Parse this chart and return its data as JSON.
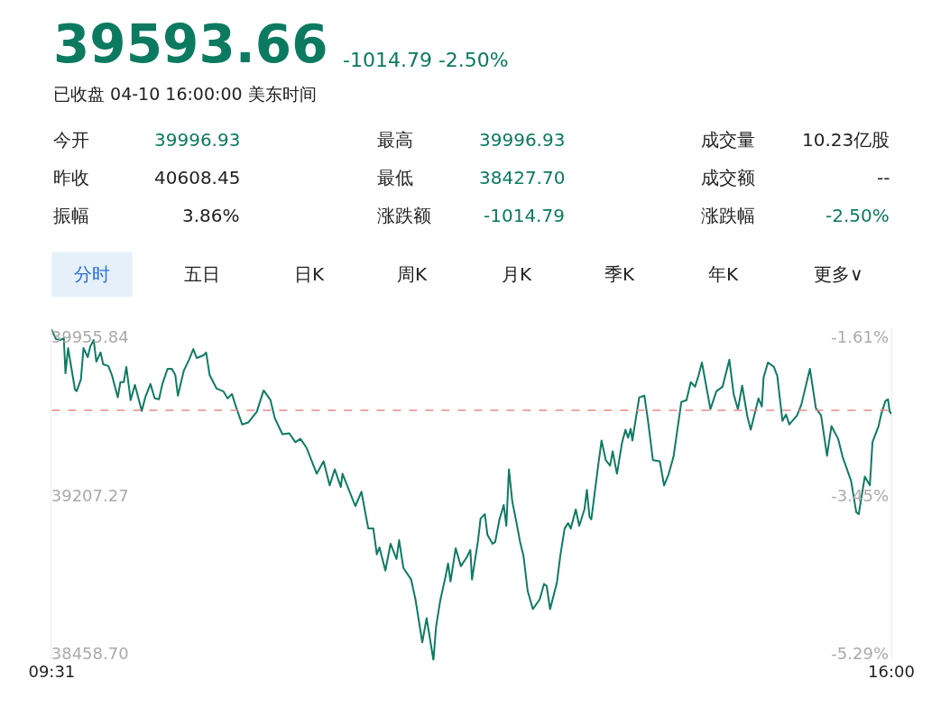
{
  "chart_data": {
    "type": "line",
    "title": "39593.66",
    "subtitle": "-1014.79 -2.50%",
    "annotations": [
      "已收盘 04-10 16:00:00 美东时间",
      "今开",
      "39996.93",
      "最高",
      "39996.93",
      "成交量",
      "10.23亿股",
      "昨收",
      "40608.45",
      "最低",
      "38427.70",
      "成交额",
      "--",
      "振幅",
      "3.86%",
      "涨跌额",
      "-1014.79",
      "涨跌幅",
      "-2.50%",
      "分时",
      "五日",
      "日K",
      "周K",
      "月K",
      "季K",
      "年K",
      "更多∨"
    ],
    "color": "#0f7a64",
    "line_style": "solid",
    "marker": "none",
    "x": [
      9.517,
      9.55,
      9.583,
      9.61,
      9.623,
      9.643,
      9.696,
      9.709,
      9.742,
      9.762,
      9.795,
      9.815,
      9.841,
      9.861,
      9.894,
      9.914,
      9.954,
      9.981,
      10.027,
      10.047,
      10.073,
      10.093,
      10.126,
      10.159,
      10.212,
      10.239,
      10.279,
      10.312,
      10.345,
      10.371,
      10.411,
      10.444,
      10.471,
      10.491,
      10.537,
      10.577,
      10.61,
      10.636,
      10.689,
      10.709,
      10.736,
      10.789,
      10.841,
      10.875,
      10.908,
      10.941,
      10.987,
      11.034,
      11.1,
      11.153,
      11.206,
      11.239,
      11.298,
      11.351,
      11.398,
      11.437,
      11.484,
      11.563,
      11.616,
      11.663,
      11.702,
      11.749,
      11.762,
      11.861,
      11.908,
      11.961,
      12.0,
      12.027,
      12.047,
      12.093,
      12.133,
      12.179,
      12.199,
      12.232,
      12.292,
      12.325,
      12.378,
      12.411,
      12.431,
      12.464,
      12.484,
      12.517,
      12.557,
      12.577,
      12.596,
      12.636,
      12.676,
      12.722,
      12.749,
      12.762,
      12.808,
      12.828,
      12.861,
      12.881,
      12.921,
      12.941,
      12.974,
      13.007,
      13.027,
      13.047,
      13.073,
      13.106,
      13.133,
      13.159,
      13.192,
      13.232,
      13.285,
      13.318,
      13.338,
      13.365,
      13.418,
      13.444,
      13.477,
      13.504,
      13.524,
      13.563,
      13.59,
      13.63,
      13.649,
      13.669,
      13.683,
      13.736,
      13.762,
      13.795,
      13.828,
      13.848,
      13.881,
      13.921,
      13.947,
      13.967,
      13.987,
      14.0,
      14.053,
      14.093,
      14.12,
      14.159,
      14.212,
      14.245,
      14.279,
      14.318,
      14.378,
      14.418,
      14.451,
      14.484,
      14.51,
      14.537,
      14.603,
      14.649,
      14.696,
      14.749,
      14.782,
      14.815,
      14.848,
      14.888,
      14.914,
      14.974,
      15.0,
      15.013,
      15.047,
      15.093,
      15.119,
      15.159,
      15.186,
      15.212,
      15.272,
      15.305,
      15.371,
      15.417,
      15.457,
      15.503,
      15.537,
      15.589,
      15.623,
      15.689,
      15.729,
      15.748,
      15.795,
      15.834,
      15.854,
      15.901,
      15.921,
      15.954,
      15.974,
      15.987,
      16.0
    ],
    "values": [
      39990,
      39946,
      39942,
      39950,
      39785,
      39904,
      39709,
      39700,
      39755,
      39904,
      39861,
      39912,
      39942,
      39840,
      39883,
      39827,
      39819,
      39777,
      39671,
      39743,
      39743,
      39815,
      39658,
      39730,
      39607,
      39671,
      39734,
      39666,
      39662,
      39734,
      39806,
      39806,
      39777,
      39679,
      39798,
      39849,
      39899,
      39857,
      39870,
      39883,
      39777,
      39713,
      39700,
      39666,
      39687,
      39624,
      39543,
      39552,
      39603,
      39704,
      39658,
      39573,
      39497,
      39501,
      39459,
      39475,
      39433,
      39310,
      39369,
      39255,
      39331,
      39247,
      39310,
      39157,
      39225,
      39051,
      39051,
      38929,
      38962,
      38852,
      38979,
      38907,
      38996,
      38865,
      38810,
      38717,
      38513,
      38627,
      38555,
      38428,
      38585,
      38712,
      38823,
      38886,
      38801,
      38958,
      38873,
      38916,
      38950,
      38810,
      38992,
      39098,
      39119,
      39022,
      38979,
      38988,
      39094,
      39162,
      39064,
      39331,
      39179,
      39077,
      38988,
      38924,
      38755,
      38670,
      38717,
      38789,
      38780,
      38670,
      38797,
      38924,
      39051,
      39077,
      39051,
      39141,
      39064,
      39141,
      39234,
      39107,
      39094,
      39348,
      39467,
      39374,
      39348,
      39416,
      39310,
      39459,
      39518,
      39480,
      39522,
      39467,
      39671,
      39679,
      39565,
      39374,
      39369,
      39255,
      39306,
      39391,
      39649,
      39658,
      39743,
      39721,
      39772,
      39836,
      39615,
      39700,
      39721,
      39849,
      39687,
      39615,
      39726,
      39581,
      39518,
      39666,
      39628,
      39764,
      39836,
      39815,
      39772,
      39560,
      39590,
      39543,
      39586,
      39637,
      39806,
      39620,
      39586,
      39395,
      39535,
      39475,
      39391,
      39276,
      39128,
      39119,
      39297,
      39255,
      39459,
      39535,
      39590,
      39654,
      39662,
      39603,
      39594
    ],
    "xlim": [
      9.517,
      16
    ],
    "xticks": [
      {
        "value": 9.517,
        "label": "09:31"
      },
      {
        "value": 16,
        "label": "16:00"
      }
    ],
    "ylim": [
      38428,
      39997
    ],
    "yticks": [
      {
        "value": 39955.84,
        "label": "39955.84"
      },
      {
        "value": 39207.27,
        "label": "39207.27"
      },
      {
        "value": 38458.7,
        "label": "38458.70"
      }
    ],
    "y2lim": [
      -5.37,
      -1.506
    ],
    "y2ticks": [
      {
        "value": -1.61,
        "label": "-1.61%"
      },
      {
        "value": -3.45,
        "label": "-3.45%"
      },
      {
        "value": -5.29,
        "label": "-5.29%"
      }
    ],
    "ref_lines": [
      {
        "axis": "y",
        "value": 39610,
        "color": "#e88a8a",
        "line_style": "dashed"
      }
    ]
  }
}
